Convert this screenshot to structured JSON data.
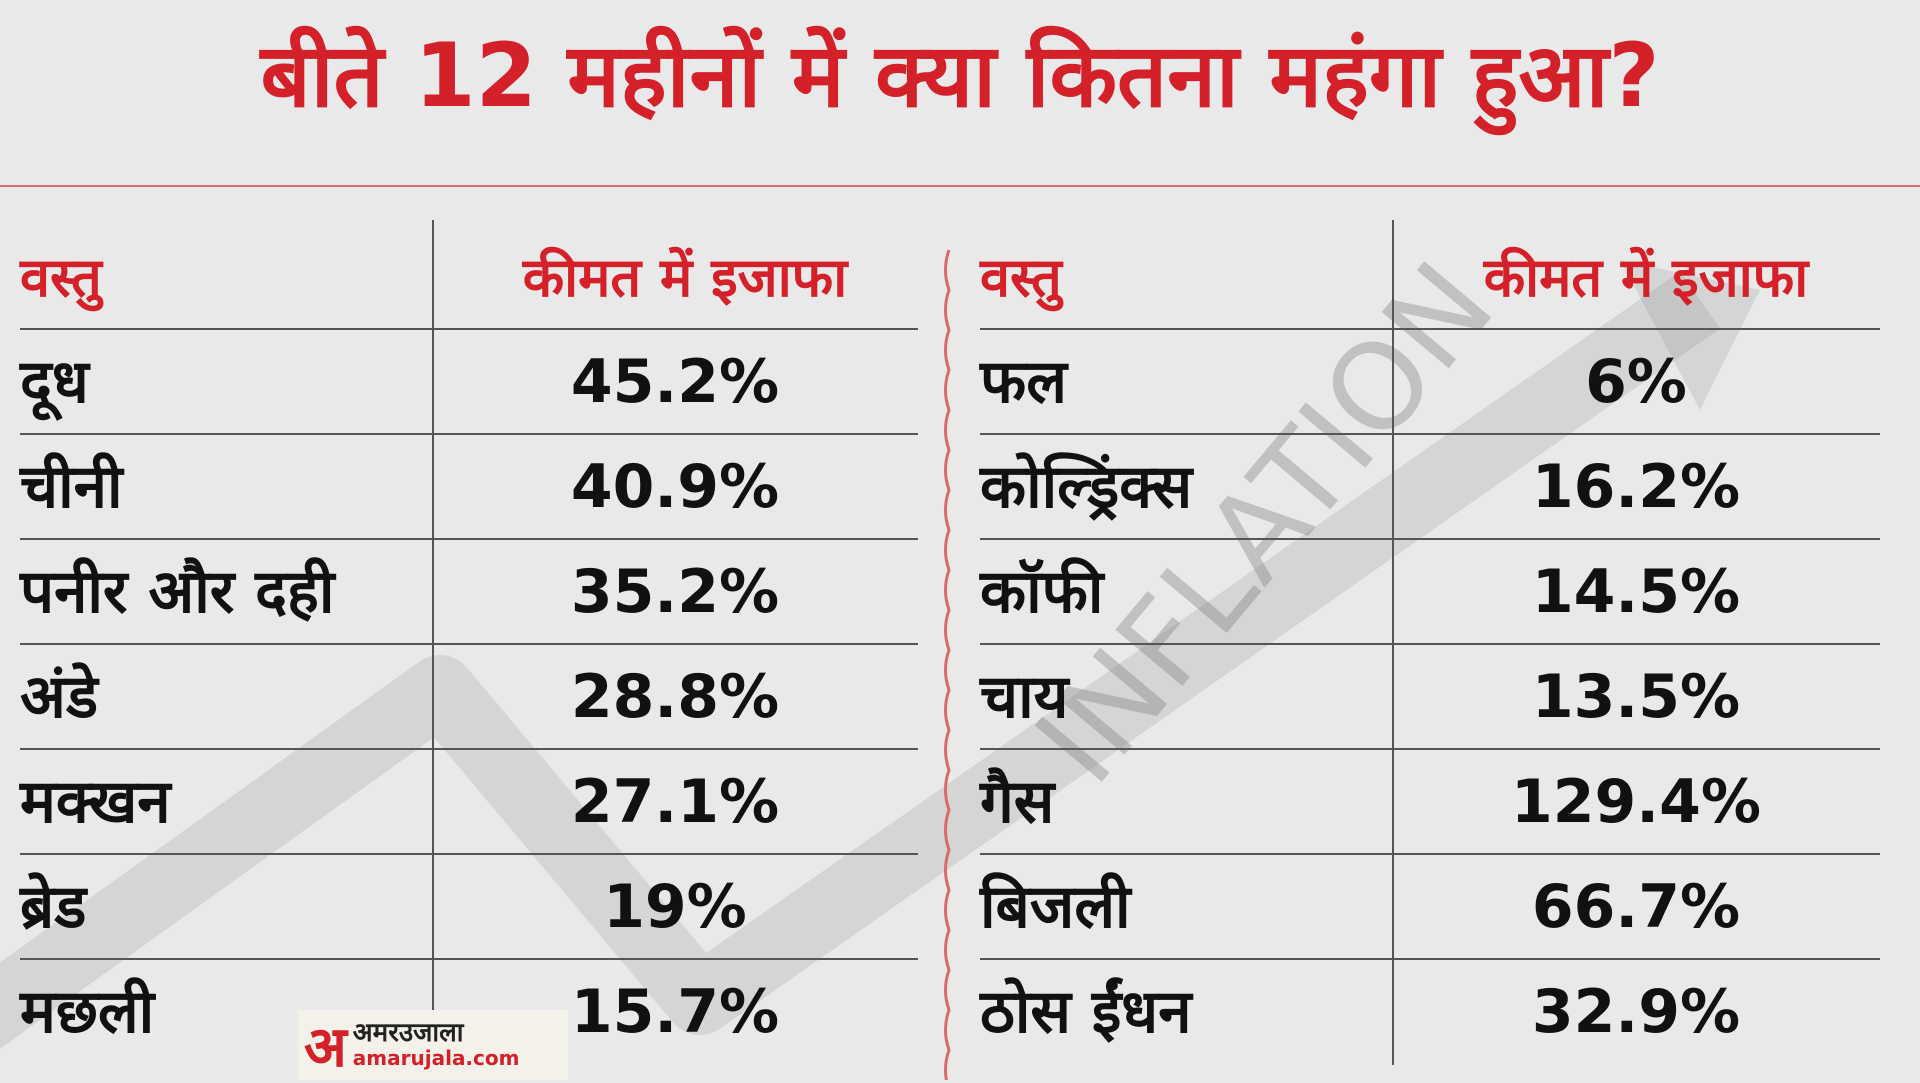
{
  "header": {
    "title": "बीते 12 महीनों में क्या कितना महंगा हुआ?"
  },
  "watermark": "INFLATION",
  "logo": {
    "mark": "अ",
    "name": "अमरउजाला",
    "site": "amarujala.com"
  },
  "tables": [
    {
      "columns": [
        "वस्तु",
        "कीमत में इजाफा"
      ],
      "rows": [
        [
          "दूध",
          "45.2%"
        ],
        [
          "चीनी",
          "40.9%"
        ],
        [
          "पनीर और दही",
          "35.2%"
        ],
        [
          "अंडे",
          "28.8%"
        ],
        [
          "मक्खन",
          "27.1%"
        ],
        [
          "ब्रेड",
          "19%"
        ],
        [
          "मछली",
          "15.7%"
        ]
      ]
    },
    {
      "columns": [
        "वस्तु",
        "कीमत में इजाफा"
      ],
      "rows": [
        [
          "फल",
          "6%"
        ],
        [
          "कोल्ड्रिंक्स",
          "16.2%"
        ],
        [
          "कॉफी",
          "14.5%"
        ],
        [
          "चाय",
          "13.5%"
        ],
        [
          "गैस",
          "129.4%"
        ],
        [
          "बिजली",
          "66.7%"
        ],
        [
          "ठोस ईंधन",
          "32.9%"
        ]
      ]
    }
  ]
}
